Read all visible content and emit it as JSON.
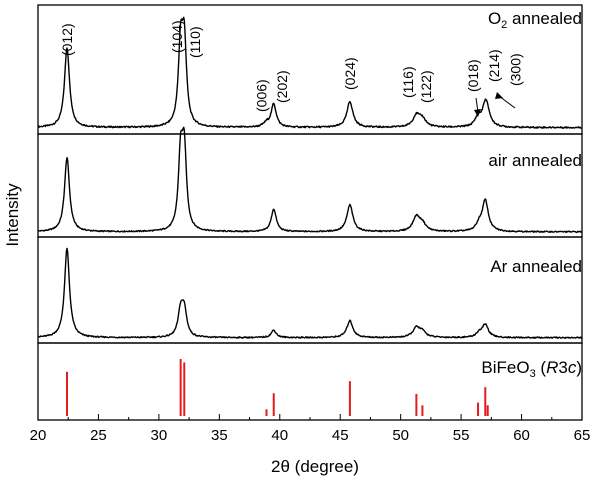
{
  "chart_data": {
    "type": "line",
    "xlabel": "2θ (degree)",
    "ylabel": "Intensity",
    "xlim": [
      20,
      65
    ],
    "xticks": [
      20,
      25,
      30,
      35,
      40,
      45,
      50,
      55,
      60,
      65
    ],
    "panels": [
      {
        "title": "annealed",
        "title_prefix": "O",
        "title_sub": "2",
        "baseline": 0.05,
        "peaks": [
          {
            "x": 22.4,
            "h": 0.62,
            "w": 0.25
          },
          {
            "x": 31.8,
            "h": 0.6,
            "w": 0.22
          },
          {
            "x": 32.1,
            "h": 0.62,
            "w": 0.22
          },
          {
            "x": 38.9,
            "h": 0.03,
            "w": 0.3
          },
          {
            "x": 39.5,
            "h": 0.18,
            "w": 0.25
          },
          {
            "x": 45.8,
            "h": 0.2,
            "w": 0.3
          },
          {
            "x": 51.3,
            "h": 0.09,
            "w": 0.35
          },
          {
            "x": 51.8,
            "h": 0.06,
            "w": 0.35
          },
          {
            "x": 56.4,
            "h": 0.07,
            "w": 0.3
          },
          {
            "x": 57.0,
            "h": 0.16,
            "w": 0.3
          },
          {
            "x": 57.2,
            "h": 0.06,
            "w": 0.3
          }
        ],
        "labels": [
          {
            "text": "(012)",
            "x": 22.4
          },
          {
            "text": "(104)",
            "x": 31.5
          },
          {
            "text": "(110)",
            "x": 33.0
          },
          {
            "text": "(006)",
            "x": 38.5
          },
          {
            "text": "(202)",
            "x": 40.2
          },
          {
            "text": "(024)",
            "x": 45.8
          },
          {
            "text": "(116)",
            "x": 50.6
          },
          {
            "text": "(122)",
            "x": 52.1
          },
          {
            "text": "(018)",
            "x": 56.0
          },
          {
            "text": "(214)",
            "x": 57.7
          },
          {
            "text": "(300)",
            "x": 59.5
          }
        ]
      },
      {
        "title": "air annealed",
        "baseline": 0.05,
        "peaks": [
          {
            "x": 22.4,
            "h": 0.72,
            "w": 0.25
          },
          {
            "x": 31.8,
            "h": 0.7,
            "w": 0.22
          },
          {
            "x": 32.1,
            "h": 0.74,
            "w": 0.22
          },
          {
            "x": 39.5,
            "h": 0.22,
            "w": 0.25
          },
          {
            "x": 45.8,
            "h": 0.26,
            "w": 0.3
          },
          {
            "x": 51.3,
            "h": 0.14,
            "w": 0.35
          },
          {
            "x": 51.8,
            "h": 0.07,
            "w": 0.35
          },
          {
            "x": 56.5,
            "h": 0.06,
            "w": 0.3
          },
          {
            "x": 57.0,
            "h": 0.3,
            "w": 0.3
          }
        ]
      },
      {
        "title": "Ar annealed",
        "baseline": 0.05,
        "peaks": [
          {
            "x": 22.4,
            "h": 0.84,
            "w": 0.25
          },
          {
            "x": 31.8,
            "h": 0.24,
            "w": 0.25
          },
          {
            "x": 32.1,
            "h": 0.24,
            "w": 0.25
          },
          {
            "x": 39.5,
            "h": 0.07,
            "w": 0.25
          },
          {
            "x": 45.8,
            "h": 0.16,
            "w": 0.3
          },
          {
            "x": 51.3,
            "h": 0.09,
            "w": 0.35
          },
          {
            "x": 51.8,
            "h": 0.05,
            "w": 0.35
          },
          {
            "x": 56.5,
            "h": 0.04,
            "w": 0.3
          },
          {
            "x": 57.0,
            "h": 0.12,
            "w": 0.3
          }
        ]
      }
    ],
    "reference": {
      "title_prefix": "BiFeO",
      "title_sub": "3",
      "title_suffix_open": " (",
      "title_italic1": "R",
      "title_mid": "3",
      "title_italic2": "c",
      "title_suffix_close": ")",
      "color": "#e41a1c",
      "lines": [
        {
          "x": 22.4,
          "h": 0.66
        },
        {
          "x": 31.8,
          "h": 0.85
        },
        {
          "x": 32.1,
          "h": 0.8
        },
        {
          "x": 38.9,
          "h": 0.1
        },
        {
          "x": 39.5,
          "h": 0.34
        },
        {
          "x": 45.8,
          "h": 0.52
        },
        {
          "x": 51.3,
          "h": 0.33
        },
        {
          "x": 51.8,
          "h": 0.16
        },
        {
          "x": 56.4,
          "h": 0.2
        },
        {
          "x": 57.0,
          "h": 0.43
        },
        {
          "x": 57.2,
          "h": 0.16
        }
      ]
    }
  }
}
